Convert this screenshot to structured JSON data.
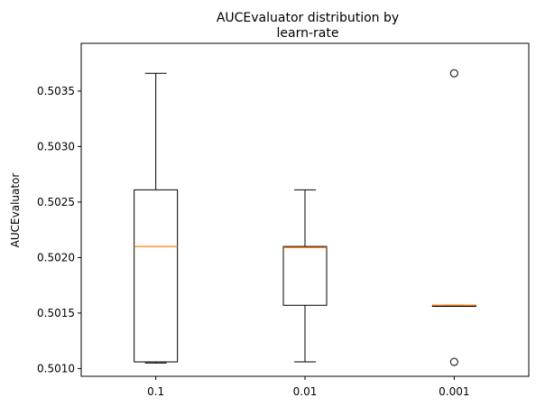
{
  "chart_data": {
    "type": "box",
    "title_lines": [
      "AUCEvaluator distribution by",
      "learn-rate"
    ],
    "xlabel": "",
    "ylabel": "AUCEvaluator",
    "ylim": [
      0.50093,
      0.50393
    ],
    "yticks": [
      0.501,
      0.5015,
      0.502,
      0.5025,
      0.503,
      0.5035
    ],
    "ytick_labels": [
      "0.5010",
      "0.5015",
      "0.5020",
      "0.5025",
      "0.5030",
      "0.5035"
    ],
    "categories": [
      "0.1",
      "0.01",
      "0.001"
    ],
    "boxes": [
      {
        "category": "0.1",
        "whisker_low": 0.50105,
        "q1": 0.50106,
        "median": 0.5021,
        "q3": 0.50261,
        "whisker_high": 0.50366,
        "outliers": []
      },
      {
        "category": "0.01",
        "whisker_low": 0.50106,
        "q1": 0.50157,
        "median": 0.50209,
        "q3": 0.5021,
        "whisker_high": 0.50261,
        "outliers": []
      },
      {
        "category": "0.001",
        "whisker_low": 0.50156,
        "q1": 0.50156,
        "median": 0.50157,
        "q3": 0.50157,
        "whisker_high": 0.50157,
        "outliers": [
          0.50366,
          0.50106
        ]
      }
    ],
    "grid": false,
    "colors": {
      "box": "#000000",
      "median": "#ff7f0e",
      "outlier": "#000000"
    }
  }
}
